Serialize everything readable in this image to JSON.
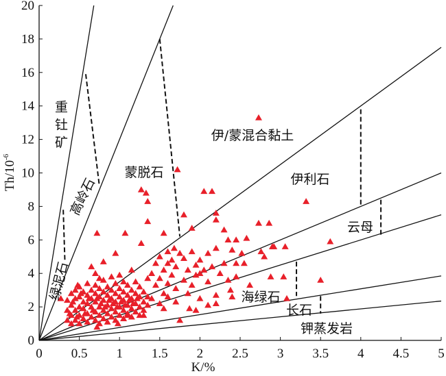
{
  "chart_data": {
    "type": "scatter",
    "xlabel": "K/%",
    "ylabel": "Th/10",
    "ylabel_exponent": "-6",
    "xlim": [
      0,
      5
    ],
    "ylim": [
      0,
      20
    ],
    "xticks": [
      "0",
      "0.5",
      "1",
      "1.5",
      "2",
      "2.5",
      "3",
      "3.5",
      "4",
      "4.5",
      "5"
    ],
    "yticks": [
      "0",
      "2",
      "4",
      "6",
      "8",
      "10",
      "12",
      "14",
      "16",
      "18",
      "20"
    ],
    "grid": false,
    "marker": "triangle",
    "marker_color": "#e8202a",
    "boundary_lines_th_k_ratio": [
      29.4,
      12,
      3.5,
      2,
      1.5,
      0.77,
      0.47
    ],
    "dashed_boundaries": [
      [
        [
          0.3,
          7.8
        ],
        [
          0.32,
          4.8
        ]
      ],
      [
        [
          0.58,
          15.9
        ],
        [
          0.75,
          9.2
        ]
      ],
      [
        [
          1.5,
          18.0
        ],
        [
          1.75,
          6.2
        ]
      ],
      [
        [
          4.0,
          13.8
        ],
        [
          4.0,
          8.0
        ]
      ],
      [
        [
          4.25,
          8.4
        ],
        [
          4.25,
          6.3
        ]
      ],
      [
        [
          3.2,
          4.7
        ],
        [
          3.2,
          2.65
        ]
      ],
      [
        [
          3.5,
          2.65
        ],
        [
          3.5,
          1.6
        ]
      ]
    ],
    "region_labels": [
      "重钍矿",
      "绿泥石",
      "高岭石",
      "蒙脱石",
      "伊/蒙混合黏土",
      "伊利石",
      "云母",
      "海绿石",
      "长石",
      "钾蒸发岩"
    ],
    "points": [
      [
        0.27,
        2.5
      ],
      [
        0.72,
        6.4
      ],
      [
        1.07,
        6.4
      ],
      [
        1.27,
        9.0
      ],
      [
        1.33,
        8.8
      ],
      [
        1.35,
        8.3
      ],
      [
        1.35,
        7.1
      ],
      [
        1.72,
        10.2
      ],
      [
        2.05,
        8.9
      ],
      [
        2.15,
        8.9
      ],
      [
        1.8,
        7.5
      ],
      [
        2.2,
        7.6
      ],
      [
        2.2,
        7.2
      ],
      [
        2.73,
        13.3
      ],
      [
        3.32,
        8.3
      ],
      [
        2.73,
        7.0
      ],
      [
        2.86,
        7.0
      ],
      [
        2.3,
        6.6
      ],
      [
        3.62,
        5.9
      ],
      [
        2.92,
        5.6
      ],
      [
        3.06,
        5.6
      ],
      [
        2.9,
        5.6
      ],
      [
        2.45,
        6.0
      ],
      [
        2.58,
        6.1
      ],
      [
        2.35,
        6.0
      ],
      [
        2.52,
        5.2
      ],
      [
        2.76,
        5.3
      ],
      [
        2.8,
        5.0
      ],
      [
        2.45,
        3.8
      ],
      [
        2.88,
        3.8
      ],
      [
        3.04,
        3.8
      ],
      [
        3.5,
        3.6
      ],
      [
        2.62,
        3.3
      ],
      [
        2.38,
        3.0
      ],
      [
        3.08,
        2.5
      ],
      [
        2.2,
        2.7
      ],
      [
        2.1,
        2.1
      ],
      [
        1.87,
        1.9
      ],
      [
        1.75,
        1.2
      ],
      [
        1.3,
        1.5
      ],
      [
        1.1,
        1.5
      ],
      [
        0.72,
        0.8
      ],
      [
        0.98,
        1.0
      ],
      [
        1.55,
        2.8
      ],
      [
        1.4,
        4.0
      ],
      [
        1.6,
        4.6
      ],
      [
        1.95,
        4.5
      ],
      [
        2.0,
        4.0
      ],
      [
        1.9,
        6.7
      ],
      [
        1.55,
        6.4
      ],
      [
        1.68,
        5.5
      ],
      [
        1.27,
        5.8
      ],
      [
        0.95,
        5.2
      ],
      [
        0.8,
        4.7
      ],
      [
        0.65,
        4.4
      ],
      [
        0.7,
        4.0
      ],
      [
        0.48,
        3.3
      ],
      [
        0.75,
        3.7
      ],
      [
        0.35,
        1.2
      ],
      [
        0.35,
        1.8
      ],
      [
        0.35,
        2.4
      ],
      [
        0.4,
        1.0
      ],
      [
        0.4,
        1.5
      ],
      [
        0.4,
        2.1
      ],
      [
        0.4,
        2.8
      ],
      [
        0.45,
        1.2
      ],
      [
        0.45,
        1.8
      ],
      [
        0.45,
        2.5
      ],
      [
        0.45,
        3.0
      ],
      [
        0.5,
        1.0
      ],
      [
        0.5,
        1.5
      ],
      [
        0.5,
        2.0
      ],
      [
        0.5,
        2.6
      ],
      [
        0.5,
        3.2
      ],
      [
        0.55,
        1.3
      ],
      [
        0.55,
        1.9
      ],
      [
        0.55,
        2.3
      ],
      [
        0.55,
        2.9
      ],
      [
        0.6,
        1.1
      ],
      [
        0.6,
        1.6
      ],
      [
        0.6,
        2.2
      ],
      [
        0.6,
        2.7
      ],
      [
        0.6,
        3.4
      ],
      [
        0.65,
        1.4
      ],
      [
        0.65,
        2.0
      ],
      [
        0.65,
        2.5
      ],
      [
        0.65,
        3.0
      ],
      [
        0.7,
        1.2
      ],
      [
        0.7,
        1.7
      ],
      [
        0.7,
        2.3
      ],
      [
        0.7,
        2.8
      ],
      [
        0.7,
        3.3
      ],
      [
        0.75,
        1.0
      ],
      [
        0.75,
        1.5
      ],
      [
        0.75,
        2.0
      ],
      [
        0.75,
        2.6
      ],
      [
        0.75,
        3.1
      ],
      [
        0.8,
        1.3
      ],
      [
        0.8,
        1.8
      ],
      [
        0.8,
        2.4
      ],
      [
        0.8,
        2.9
      ],
      [
        0.8,
        3.6
      ],
      [
        0.85,
        1.1
      ],
      [
        0.85,
        1.6
      ],
      [
        0.85,
        2.1
      ],
      [
        0.85,
        2.7
      ],
      [
        0.85,
        3.2
      ],
      [
        0.9,
        1.4
      ],
      [
        0.9,
        1.9
      ],
      [
        0.9,
        2.5
      ],
      [
        0.9,
        3.0
      ],
      [
        0.9,
        3.8
      ],
      [
        0.95,
        1.2
      ],
      [
        0.95,
        1.7
      ],
      [
        0.95,
        2.3
      ],
      [
        0.95,
        2.8
      ],
      [
        0.95,
        3.4
      ],
      [
        1.0,
        1.5
      ],
      [
        1.0,
        2.0
      ],
      [
        1.0,
        2.6
      ],
      [
        1.0,
        3.1
      ],
      [
        1.0,
        3.9
      ],
      [
        1.05,
        1.3
      ],
      [
        1.05,
        1.8
      ],
      [
        1.05,
        2.4
      ],
      [
        1.05,
        2.9
      ],
      [
        1.05,
        3.5
      ],
      [
        1.1,
        1.6
      ],
      [
        1.1,
        2.1
      ],
      [
        1.1,
        2.7
      ],
      [
        1.1,
        3.3
      ],
      [
        1.15,
        1.4
      ],
      [
        1.15,
        1.9
      ],
      [
        1.15,
        2.5
      ],
      [
        1.15,
        3.0
      ],
      [
        1.15,
        4.2
      ],
      [
        1.2,
        1.7
      ],
      [
        1.2,
        2.2
      ],
      [
        1.2,
        2.8
      ],
      [
        1.2,
        3.5
      ],
      [
        1.25,
        1.5
      ],
      [
        1.25,
        2.0
      ],
      [
        1.25,
        2.6
      ],
      [
        1.25,
        3.2
      ],
      [
        1.3,
        1.8
      ],
      [
        1.3,
        2.3
      ],
      [
        1.3,
        2.9
      ],
      [
        1.35,
        2.1
      ],
      [
        1.35,
        2.6
      ],
      [
        1.35,
        3.7
      ],
      [
        0.38,
        1.6
      ],
      [
        0.42,
        2.3
      ],
      [
        0.47,
        1.4
      ],
      [
        0.52,
        2.8
      ],
      [
        0.57,
        1.6
      ],
      [
        0.62,
        2.5
      ],
      [
        0.67,
        1.8
      ],
      [
        0.72,
        2.5
      ],
      [
        0.77,
        2.2
      ],
      [
        0.82,
        2.0
      ],
      [
        0.87,
        2.4
      ],
      [
        0.92,
        2.2
      ],
      [
        0.97,
        2.0
      ],
      [
        1.02,
        2.3
      ],
      [
        1.07,
        2.1
      ],
      [
        1.12,
        2.4
      ],
      [
        1.17,
        2.2
      ],
      [
        1.22,
        2.5
      ],
      [
        1.4,
        2.5
      ],
      [
        1.45,
        3.3
      ],
      [
        1.45,
        4.6
      ],
      [
        1.5,
        2.2
      ],
      [
        1.5,
        3.7
      ],
      [
        1.5,
        5.0
      ],
      [
        1.55,
        4.2
      ],
      [
        1.6,
        2.6
      ],
      [
        1.6,
        3.4
      ],
      [
        1.6,
        5.3
      ],
      [
        1.65,
        3.9
      ],
      [
        1.65,
        4.8
      ],
      [
        1.7,
        2.3
      ],
      [
        1.7,
        3.1
      ],
      [
        1.7,
        4.4
      ],
      [
        1.75,
        5.2
      ],
      [
        1.8,
        3.6
      ],
      [
        1.8,
        4.9
      ],
      [
        1.85,
        2.8
      ],
      [
        1.85,
        4.2
      ],
      [
        1.9,
        3.3
      ],
      [
        1.9,
        5.3
      ],
      [
        1.95,
        3.9
      ],
      [
        2.0,
        4.8
      ],
      [
        2.05,
        4.2
      ],
      [
        2.1,
        3.5
      ],
      [
        2.1,
        5.2
      ],
      [
        2.15,
        4.4
      ],
      [
        2.2,
        5.5
      ],
      [
        2.25,
        4.0
      ],
      [
        2.3,
        4.6
      ],
      [
        2.35,
        3.6
      ],
      [
        2.4,
        5.4
      ],
      [
        2.45,
        4.6
      ],
      [
        2.55,
        4.6
      ],
      [
        2.0,
        2.5
      ],
      [
        2.2,
        2.2
      ],
      [
        1.95,
        1.8
      ],
      [
        2.4,
        2.6
      ],
      [
        1.55,
        1.9
      ]
    ]
  }
}
